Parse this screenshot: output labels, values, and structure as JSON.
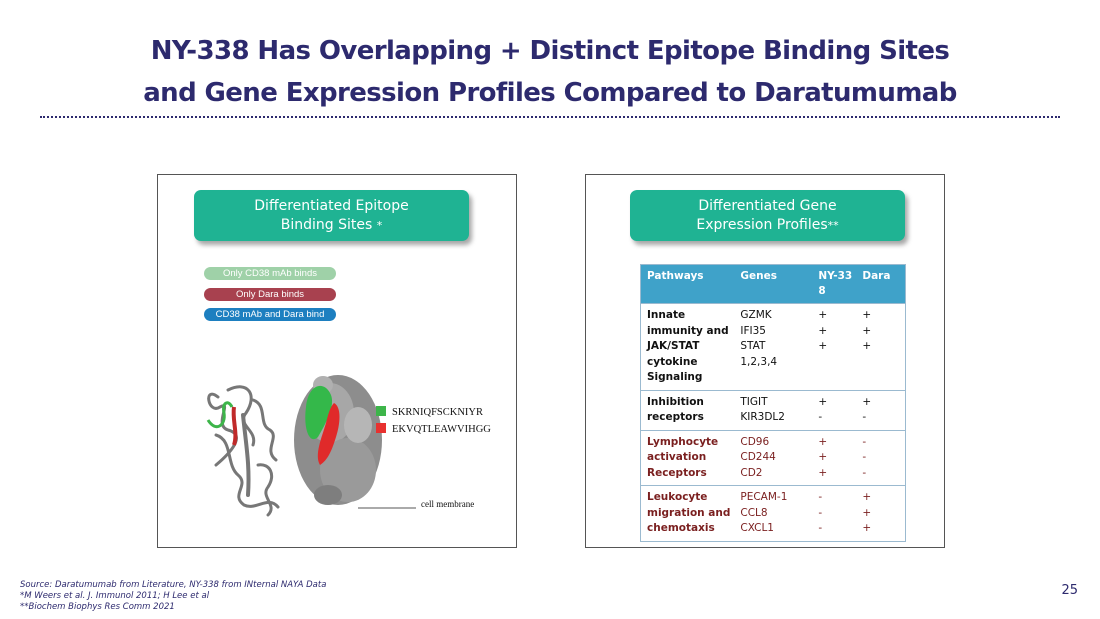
{
  "title": {
    "line1": "NY-338 Has Overlapping + Distinct Epitope Binding Sites",
    "line2": "and Gene Expression Profiles Compared to Daratumumab"
  },
  "left_panel": {
    "header_line1": "Differentiated Epitope",
    "header_line2": "Binding Sites",
    "header_marker": "*",
    "legend": [
      {
        "label": "Only CD38 mAb binds",
        "color": "#9fd1a8"
      },
      {
        "label": "Only Dara binds",
        "color": "#a8414f"
      },
      {
        "label": "CD38 mAb and Dara bind",
        "color": "#1d7fc0"
      }
    ],
    "sequences": [
      {
        "label": "SKRNIQFSCKNIYR",
        "color": "#3db54a"
      },
      {
        "label": "EKVQTLEAWVIHGG",
        "color": "#e8312f"
      }
    ],
    "membrane_label": "cell membrane"
  },
  "right_panel": {
    "header_line1": "Differentiated Gene",
    "header_line2": "Expression Profiles",
    "header_marker": "**",
    "table": {
      "headers": [
        "Pathways",
        "Genes",
        "NY-338",
        "Dara"
      ],
      "rows": [
        {
          "pathway": [
            "Innate",
            "immunity and",
            "JAK/STAT",
            "cytokine",
            "Signaling"
          ],
          "genes": [
            "GZMK",
            "IFI35",
            "STAT",
            "1,2,3,4"
          ],
          "ny338": [
            "+",
            "+",
            "+"
          ],
          "dara": [
            "+",
            "+",
            "+"
          ],
          "alt": false
        },
        {
          "pathway": [
            "Inhibition",
            "receptors"
          ],
          "genes": [
            "TIGIT",
            "KIR3DL2"
          ],
          "ny338": [
            "+",
            "-"
          ],
          "dara": [
            "+",
            "-"
          ],
          "alt": false
        },
        {
          "pathway": [
            "Lymphocyte",
            "activation",
            "Receptors"
          ],
          "genes": [
            "CD96",
            "CD244",
            "CD2"
          ],
          "ny338": [
            "+",
            "+",
            "+"
          ],
          "dara": [
            "-",
            "-",
            "-"
          ],
          "alt": true
        },
        {
          "pathway": [
            "Leukocyte",
            "migration and",
            "chemotaxis"
          ],
          "genes": [
            "PECAM-1",
            "CCL8",
            "CXCL1"
          ],
          "ny338": [
            "-",
            "-",
            "-"
          ],
          "dara": [
            "+",
            "+",
            "+"
          ],
          "alt": true
        }
      ]
    }
  },
  "footnotes": [
    "Source: Daratumumab from Literature, NY-338 from INternal NAYA Data",
    "*M Weers et al. J. Immunol 2011; H Lee et al",
    "**Biochem Biophys Res Comm 2021"
  ],
  "page_number": "25",
  "colors": {
    "title": "#2d2a6e",
    "pill": "#1fb393",
    "table_header": "#3fa2c9"
  }
}
